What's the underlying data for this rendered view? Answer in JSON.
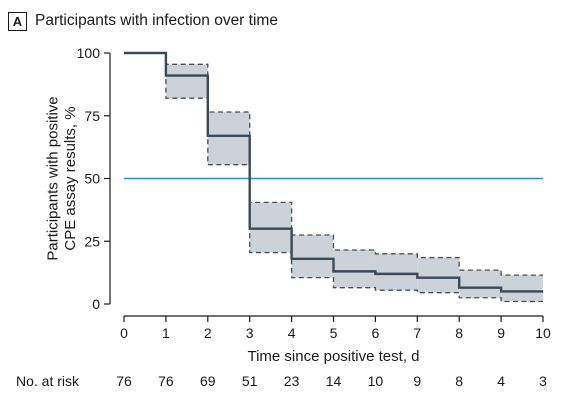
{
  "panel": {
    "letter": "A",
    "title": "Participants with infection over time"
  },
  "colors": {
    "curve": "#3b4a57",
    "band_fill": "#cdd2d8",
    "band_edge": "#4d4d4d",
    "reference": "#2b8fd6",
    "axis": "#1a1a1a"
  },
  "chart_data": {
    "type": "line",
    "subtype": "step-with-confidence-band",
    "title": "Participants with infection over time",
    "xlabel": "Time since positive test, d",
    "ylabel": "Participants with positive CPE assay results, %",
    "xlim": [
      0,
      10
    ],
    "ylim": [
      0,
      100
    ],
    "x_ticks": [
      0,
      1,
      2,
      3,
      4,
      5,
      6,
      7,
      8,
      9,
      10
    ],
    "y_ticks": [
      0,
      25,
      50,
      75,
      100
    ],
    "grid": false,
    "legend": "none",
    "reference_line": {
      "y": 50
    },
    "series": [
      {
        "x": [
          0,
          1,
          2,
          3,
          4,
          5,
          6,
          7,
          8,
          9,
          10
        ],
        "values": [
          100,
          91,
          67,
          30,
          18,
          13,
          12,
          10.5,
          6.5,
          5,
          5
        ],
        "ci_lower": [
          100,
          82,
          55.5,
          20.5,
          10.5,
          6.5,
          5.5,
          4.5,
          2.5,
          1,
          1
        ],
        "ci_upper": [
          100,
          95.5,
          76.5,
          40.5,
          27.5,
          21.5,
          20,
          18.5,
          13.5,
          11.5,
          11.5
        ]
      }
    ],
    "risk_table": {
      "label": "No. at risk",
      "values": [
        "76",
        "76",
        "69",
        "51",
        "23",
        "14",
        "10",
        "9",
        "8",
        "4",
        "3"
      ]
    }
  }
}
